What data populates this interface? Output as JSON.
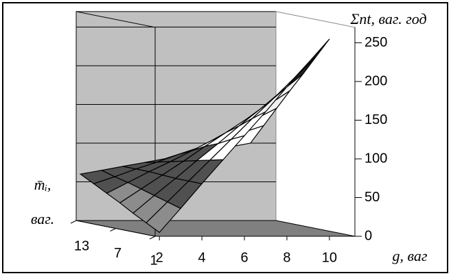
{
  "chart_data": {
    "type": "surface",
    "title": "Σnt, ваг. год",
    "x_label": "g, ваг",
    "depth_label": [
      "m̄ᵢ,",
      "ваг."
    ],
    "x": [
      2,
      3,
      4,
      5,
      6,
      7,
      8,
      9,
      10
    ],
    "depth": [
      1,
      3,
      5,
      7,
      9,
      11,
      13
    ],
    "values": [
      [
        5,
        36,
        68,
        99,
        130,
        161,
        193,
        224,
        255
      ],
      [
        14,
        41,
        68,
        95,
        122,
        149,
        175,
        202,
        229
      ],
      [
        23,
        46,
        68,
        91,
        113,
        136,
        158,
        181,
        203
      ],
      [
        33,
        51,
        69,
        87,
        106,
        124,
        142,
        160,
        178
      ],
      [
        42,
        56,
        70,
        83,
        97,
        111,
        125,
        138,
        152
      ],
      [
        51,
        60,
        70,
        79,
        89,
        98,
        107,
        117,
        126
      ],
      [
        60,
        65,
        70,
        75,
        80,
        85,
        90,
        95,
        100
      ]
    ],
    "xlim": [
      1.8,
      11.2
    ],
    "xticks": [
      2,
      4,
      6,
      8,
      10
    ],
    "depthlim": [
      1,
      13
    ],
    "depthticks": [
      13,
      7,
      1
    ],
    "zlim": [
      0,
      270
    ],
    "zticks": [
      0,
      50,
      100,
      150,
      200,
      250
    ],
    "band_colors": [
      "#8c8c8c",
      "#505050",
      "#ffffff",
      "#f0f0f0",
      "#222222"
    ],
    "wall_color": "#c0c0c0",
    "floor_color": "#808080"
  }
}
